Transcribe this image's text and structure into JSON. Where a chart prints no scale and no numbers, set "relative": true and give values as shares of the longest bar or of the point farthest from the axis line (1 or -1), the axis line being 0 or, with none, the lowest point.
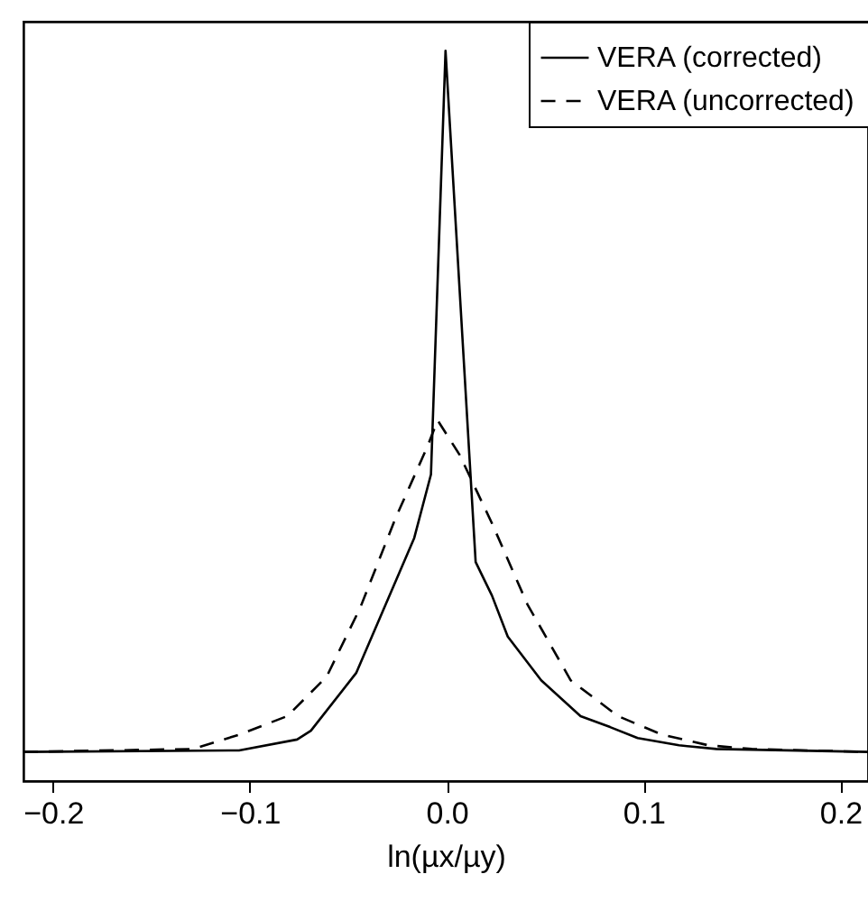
{
  "chart_data": {
    "type": "line",
    "xlabel": "ln(µx/µy)",
    "relative": true,
    "xlim": [
      -0.215,
      0.214
    ],
    "xticks": [
      {
        "value": -0.2,
        "label": "−0.2"
      },
      {
        "value": -0.1,
        "label": "−0.1"
      },
      {
        "value": 0.0,
        "label": "0.0"
      },
      {
        "value": 0.1,
        "label": "0.1"
      },
      {
        "value": 0.2,
        "label": "0.2"
      }
    ],
    "grid": false,
    "legend": "top right",
    "marker": "none",
    "tick_labels": "x",
    "series": [
      {
        "name": "VERA (corrected)",
        "color": "#000000",
        "line_style": "solid",
        "x": [
          -0.215,
          -0.1055,
          -0.076,
          -0.069,
          -0.046,
          -0.0165,
          -0.008,
          -0.0006,
          0.0147,
          0.023,
          0.031,
          0.048,
          0.068,
          0.083,
          0.097,
          0.118,
          0.137,
          0.214
        ],
        "values": [
          0.04,
          0.042,
          0.057,
          0.069,
          0.148,
          0.333,
          0.42,
          1.0,
          0.3,
          0.254,
          0.198,
          0.138,
          0.089,
          0.074,
          0.059,
          0.049,
          0.044,
          0.04
        ]
      },
      {
        "name": "VERA (uncorrected)",
        "color": "#000000",
        "line_style": "dashed",
        "x": [
          -0.215,
          -0.129,
          -0.105,
          -0.081,
          -0.061,
          -0.044,
          -0.026,
          -0.01,
          -0.0046,
          0.0065,
          0.023,
          0.041,
          0.063,
          0.087,
          0.109,
          0.133,
          0.155,
          0.214
        ],
        "values": [
          0.04,
          0.044,
          0.064,
          0.089,
          0.143,
          0.237,
          0.36,
          0.457,
          0.494,
          0.447,
          0.353,
          0.242,
          0.138,
          0.089,
          0.064,
          0.049,
          0.044,
          0.04
        ]
      }
    ]
  }
}
